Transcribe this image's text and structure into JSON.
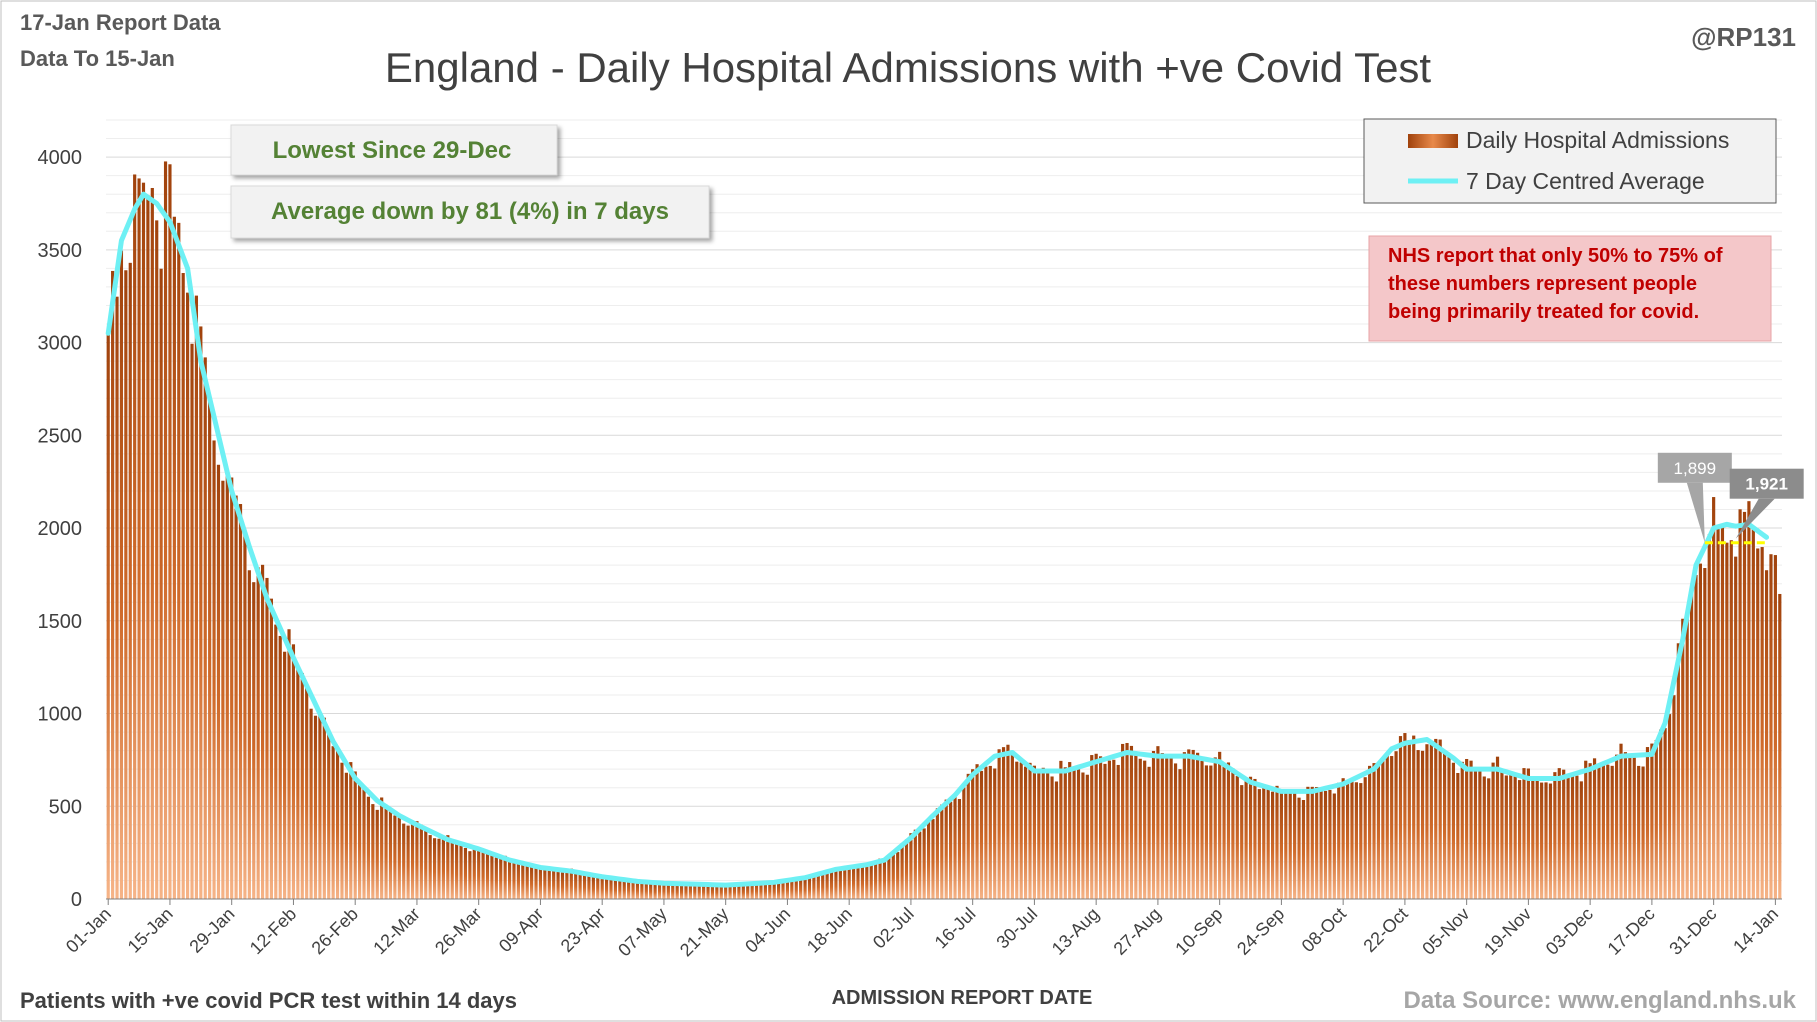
{
  "header": {
    "report_date": "17-Jan Report Data",
    "data_to": "Data To 15-Jan",
    "handle": "@RP131"
  },
  "footer": {
    "note": "Patients with +ve covid PCR test within 14 days",
    "source": "Data Source: www.england.nhs.uk"
  },
  "callouts": {
    "lowest": "Lowest Since 29-Dec",
    "average_change": "Average down by 81 (4%) in 7 days",
    "nhs_note_lines": [
      "NHS report that only 50% to 75% of",
      "these numbers represent people",
      "being primarily treated for covid."
    ]
  },
  "colors": {
    "bar_dark": "#a0420c",
    "bar_light": "#f6b488",
    "avg_line": "#6ef0f4",
    "callout_text": "#548235",
    "nhs_text": "#c00000",
    "nhs_bg": "#f4c7c9",
    "reference_line": "#ffff00"
  },
  "chart_data": {
    "type": "bar",
    "title": "England - Daily Hospital Admissions with +ve Covid Test",
    "xlabel": "ADMISSION REPORT DATE",
    "ylabel": "",
    "ylim": [
      0,
      4200
    ],
    "yticks": [
      0,
      500,
      1000,
      1500,
      2000,
      2500,
      3000,
      3500,
      4000
    ],
    "start_date": "2021-01-01",
    "x_tick_labels": [
      "01-Jan",
      "15-Jan",
      "29-Jan",
      "12-Feb",
      "26-Feb",
      "12-Mar",
      "26-Mar",
      "09-Apr",
      "23-Apr",
      "07-May",
      "21-May",
      "04-Jun",
      "18-Jun",
      "02-Jul",
      "16-Jul",
      "30-Jul",
      "13-Aug",
      "27-Aug",
      "10-Sep",
      "24-Sep",
      "08-Oct",
      "22-Oct",
      "05-Nov",
      "19-Nov",
      "03-Dec",
      "17-Dec",
      "31-Dec",
      "14-Jan"
    ],
    "grid": true,
    "legend": {
      "placement": "top-right",
      "entries": [
        "Daily Hospital Admissions",
        "7 Day Centred Average"
      ]
    },
    "annotations": [
      {
        "label": "1,899",
        "date": "2021-12-29",
        "value": 1899
      },
      {
        "label": "1,921",
        "date": "2022-01-05",
        "value": 1921
      }
    ],
    "reference_line": {
      "value": 1921,
      "from": "2021-12-29",
      "to": "2022-01-12"
    },
    "series": [
      {
        "name": "Daily Hospital Admissions",
        "anchors": [
          [
            "2021-01-01",
            3000
          ],
          [
            "2021-01-04",
            3550
          ],
          [
            "2021-01-07",
            3720
          ],
          [
            "2021-01-09",
            3800
          ],
          [
            "2021-01-12",
            3750
          ],
          [
            "2021-01-15",
            3650
          ],
          [
            "2021-01-19",
            3400
          ],
          [
            "2021-01-22",
            2900
          ],
          [
            "2021-01-26",
            2500
          ],
          [
            "2021-01-29",
            2200
          ],
          [
            "2021-02-02",
            1900
          ],
          [
            "2021-02-06",
            1620
          ],
          [
            "2021-02-12",
            1300
          ],
          [
            "2021-02-17",
            1050
          ],
          [
            "2021-02-21",
            850
          ],
          [
            "2021-02-26",
            650
          ],
          [
            "2021-03-03",
            530
          ],
          [
            "2021-03-08",
            450
          ],
          [
            "2021-03-12",
            400
          ],
          [
            "2021-03-19",
            320
          ],
          [
            "2021-03-26",
            270
          ],
          [
            "2021-04-02",
            210
          ],
          [
            "2021-04-09",
            170
          ],
          [
            "2021-04-16",
            150
          ],
          [
            "2021-04-23",
            120
          ],
          [
            "2021-05-01",
            95
          ],
          [
            "2021-05-07",
            85
          ],
          [
            "2021-05-21",
            75
          ],
          [
            "2021-06-01",
            90
          ],
          [
            "2021-06-08",
            115
          ],
          [
            "2021-06-15",
            160
          ],
          [
            "2021-06-22",
            185
          ],
          [
            "2021-06-26",
            210
          ],
          [
            "2021-07-02",
            330
          ],
          [
            "2021-07-07",
            450
          ],
          [
            "2021-07-12",
            560
          ],
          [
            "2021-07-16",
            670
          ],
          [
            "2021-07-21",
            770
          ],
          [
            "2021-07-25",
            790
          ],
          [
            "2021-07-30",
            690
          ],
          [
            "2021-08-06",
            690
          ],
          [
            "2021-08-13",
            740
          ],
          [
            "2021-08-20",
            790
          ],
          [
            "2021-08-27",
            770
          ],
          [
            "2021-09-03",
            770
          ],
          [
            "2021-09-10",
            740
          ],
          [
            "2021-09-17",
            630
          ],
          [
            "2021-09-24",
            580
          ],
          [
            "2021-10-01",
            580
          ],
          [
            "2021-10-08",
            620
          ],
          [
            "2021-10-15",
            700
          ],
          [
            "2021-10-19",
            810
          ],
          [
            "2021-10-22",
            840
          ],
          [
            "2021-10-27",
            860
          ],
          [
            "2021-11-02",
            760
          ],
          [
            "2021-11-05",
            700
          ],
          [
            "2021-11-12",
            700
          ],
          [
            "2021-11-19",
            650
          ],
          [
            "2021-11-26",
            650
          ],
          [
            "2021-12-03",
            700
          ],
          [
            "2021-12-10",
            770
          ],
          [
            "2021-12-17",
            780
          ],
          [
            "2021-12-20",
            950
          ],
          [
            "2021-12-24",
            1400
          ],
          [
            "2021-12-27",
            1800
          ],
          [
            "2021-12-29",
            1899
          ],
          [
            "2021-12-31",
            2000
          ],
          [
            "2022-01-03",
            2020
          ],
          [
            "2022-01-05",
            1921
          ],
          [
            "2022-01-08",
            2020
          ],
          [
            "2022-01-12",
            1900
          ],
          [
            "2022-01-15",
            1600
          ]
        ],
        "noise_amplitude": 0.08
      },
      {
        "name": "7 Day Centred Average",
        "anchors": [
          [
            "2021-01-01",
            3050
          ],
          [
            "2021-01-04",
            3550
          ],
          [
            "2021-01-07",
            3720
          ],
          [
            "2021-01-09",
            3800
          ],
          [
            "2021-01-12",
            3750
          ],
          [
            "2021-01-15",
            3650
          ],
          [
            "2021-01-19",
            3400
          ],
          [
            "2021-01-22",
            2900
          ],
          [
            "2021-01-26",
            2500
          ],
          [
            "2021-01-29",
            2200
          ],
          [
            "2021-02-02",
            1900
          ],
          [
            "2021-02-06",
            1620
          ],
          [
            "2021-02-12",
            1300
          ],
          [
            "2021-02-17",
            1050
          ],
          [
            "2021-02-21",
            850
          ],
          [
            "2021-02-26",
            650
          ],
          [
            "2021-03-03",
            530
          ],
          [
            "2021-03-08",
            450
          ],
          [
            "2021-03-12",
            400
          ],
          [
            "2021-03-19",
            320
          ],
          [
            "2021-03-26",
            270
          ],
          [
            "2021-04-02",
            210
          ],
          [
            "2021-04-09",
            170
          ],
          [
            "2021-04-16",
            150
          ],
          [
            "2021-04-23",
            120
          ],
          [
            "2021-05-01",
            95
          ],
          [
            "2021-05-07",
            85
          ],
          [
            "2021-05-21",
            75
          ],
          [
            "2021-06-01",
            90
          ],
          [
            "2021-06-08",
            115
          ],
          [
            "2021-06-15",
            160
          ],
          [
            "2021-06-22",
            185
          ],
          [
            "2021-06-26",
            210
          ],
          [
            "2021-07-02",
            330
          ],
          [
            "2021-07-07",
            450
          ],
          [
            "2021-07-12",
            560
          ],
          [
            "2021-07-16",
            670
          ],
          [
            "2021-07-21",
            770
          ],
          [
            "2021-07-25",
            790
          ],
          [
            "2021-07-30",
            690
          ],
          [
            "2021-08-06",
            690
          ],
          [
            "2021-08-13",
            740
          ],
          [
            "2021-08-20",
            790
          ],
          [
            "2021-08-27",
            770
          ],
          [
            "2021-09-03",
            770
          ],
          [
            "2021-09-10",
            740
          ],
          [
            "2021-09-17",
            630
          ],
          [
            "2021-09-24",
            580
          ],
          [
            "2021-10-01",
            580
          ],
          [
            "2021-10-08",
            620
          ],
          [
            "2021-10-15",
            700
          ],
          [
            "2021-10-19",
            810
          ],
          [
            "2021-10-22",
            840
          ],
          [
            "2021-10-27",
            860
          ],
          [
            "2021-11-02",
            760
          ],
          [
            "2021-11-05",
            700
          ],
          [
            "2021-11-12",
            700
          ],
          [
            "2021-11-19",
            650
          ],
          [
            "2021-11-26",
            650
          ],
          [
            "2021-12-03",
            700
          ],
          [
            "2021-12-10",
            770
          ],
          [
            "2021-12-17",
            780
          ],
          [
            "2021-12-20",
            950
          ],
          [
            "2021-12-24",
            1400
          ],
          [
            "2021-12-27",
            1800
          ],
          [
            "2021-12-29",
            1899
          ],
          [
            "2021-12-31",
            2000
          ],
          [
            "2022-01-03",
            2020
          ],
          [
            "2022-01-05",
            2010
          ],
          [
            "2022-01-08",
            2020
          ],
          [
            "2022-01-12",
            1950
          ]
        ]
      }
    ]
  }
}
